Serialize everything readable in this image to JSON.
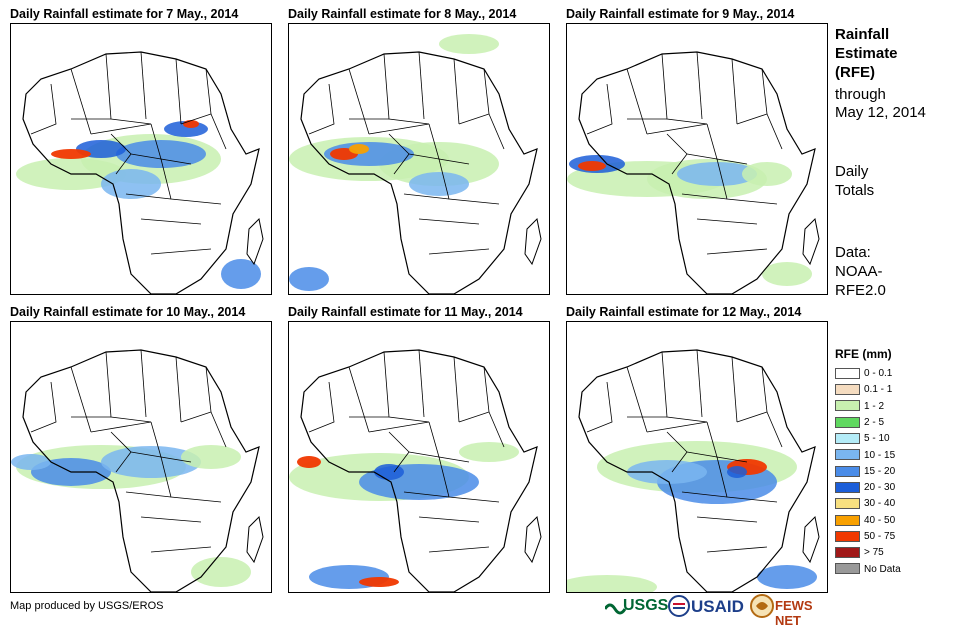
{
  "panels": [
    {
      "title": "Daily Rainfall estimate for 7 May., 2014"
    },
    {
      "title": "Daily Rainfall estimate for 8 May., 2014"
    },
    {
      "title": "Daily Rainfall estimate for 9 May., 2014"
    },
    {
      "title": "Daily Rainfall estimate for 10 May., 2014"
    },
    {
      "title": "Daily Rainfall estimate for 11 May., 2014"
    },
    {
      "title": "Daily Rainfall estimate for 12 May., 2014"
    }
  ],
  "side": {
    "title_line1": "Rainfall",
    "title_line2": "Estimate",
    "title_line3": "(RFE)",
    "through": "through",
    "date": "May 12, 2014",
    "daily": "Daily",
    "totals": "Totals",
    "data_label": "Data:",
    "data_src1": "NOAA-",
    "data_src2": "RFE2.0"
  },
  "legend": {
    "title": "RFE (mm)",
    "items": [
      {
        "label": "0 - 0.1",
        "color": "#ffffff"
      },
      {
        "label": "0.1 - 1",
        "color": "#f5dcc0"
      },
      {
        "label": "1 - 2",
        "color": "#c8f0b0"
      },
      {
        "label": "2 - 5",
        "color": "#60d860"
      },
      {
        "label": "5 - 10",
        "color": "#b4ecf8"
      },
      {
        "label": "10 - 15",
        "color": "#7ab6f0"
      },
      {
        "label": "15 - 20",
        "color": "#4a8ce8"
      },
      {
        "label": "20 - 30",
        "color": "#1c5ed8"
      },
      {
        "label": "30 - 40",
        "color": "#f8e080"
      },
      {
        "label": "40 - 50",
        "color": "#f8a000"
      },
      {
        "label": "50 - 75",
        "color": "#f03800"
      },
      {
        "label": "> 75",
        "color": "#a01818"
      },
      {
        "label": "No Data",
        "color": "#999999"
      }
    ]
  },
  "footer": {
    "credit": "Map produced by USGS/EROS"
  },
  "logos": {
    "usgs": "USGS",
    "usaid": "USAID",
    "fews": "FEWS NET"
  }
}
